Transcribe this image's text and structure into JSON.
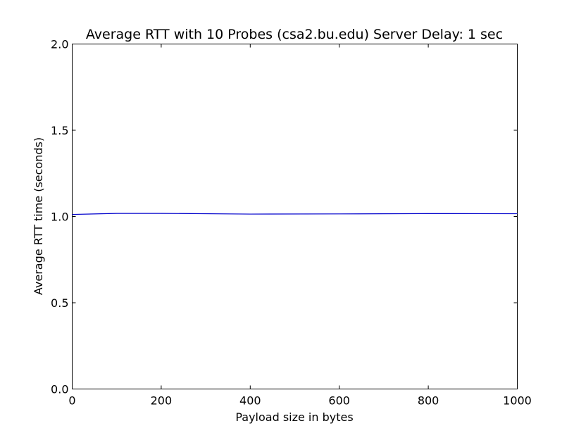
{
  "chart_data": {
    "type": "line",
    "title": "Average RTT with 10 Probes (csa2.bu.edu) Server Delay: 1 sec",
    "xlabel": "Payload size in bytes",
    "ylabel": "Average RTT time (seconds)",
    "xlim": [
      0,
      1000
    ],
    "ylim": [
      0.0,
      2.0
    ],
    "xticks": [
      0,
      200,
      400,
      600,
      800,
      1000
    ],
    "xtick_labels": [
      "0",
      "200",
      "400",
      "600",
      "800",
      "1000"
    ],
    "yticks": [
      0.0,
      0.5,
      1.0,
      1.5,
      2.0
    ],
    "ytick_labels": [
      "0.0",
      "0.5",
      "1.0",
      "1.5",
      "2.0"
    ],
    "grid": false,
    "series": [
      {
        "color": "#0000cc",
        "x": [
          0,
          100,
          200,
          400,
          600,
          800,
          1000
        ],
        "y": [
          1.012,
          1.018,
          1.018,
          1.014,
          1.015,
          1.017,
          1.016
        ]
      }
    ]
  }
}
